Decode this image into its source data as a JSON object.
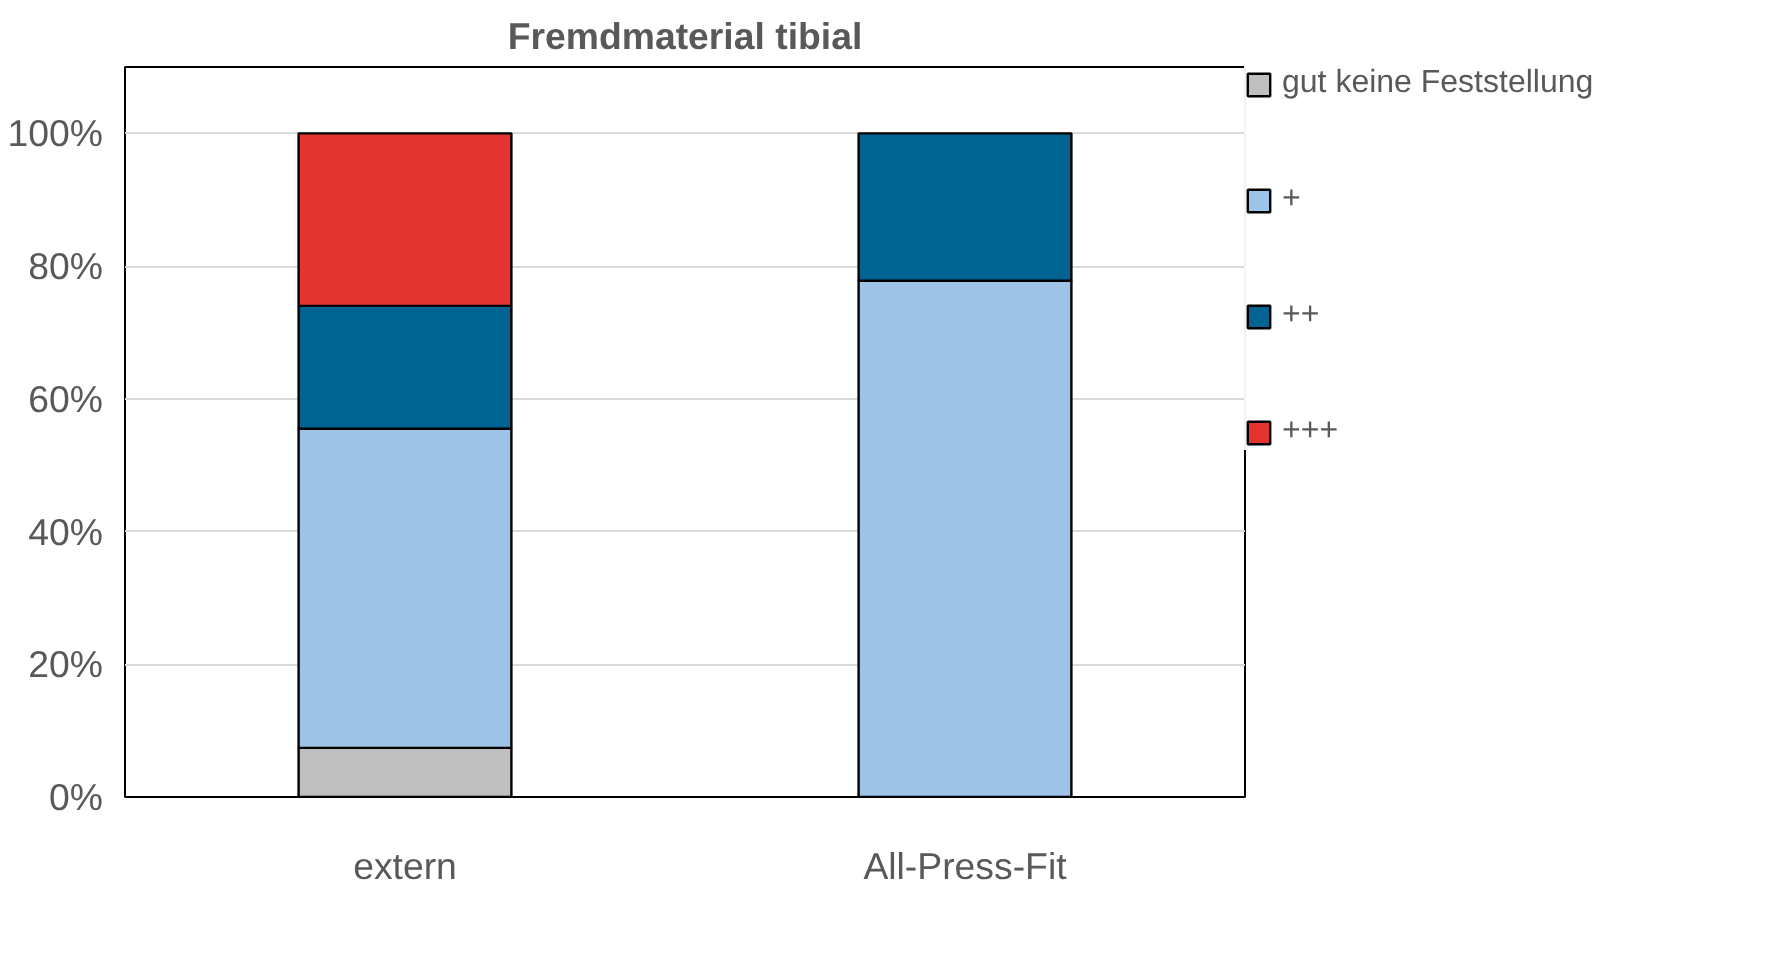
{
  "chart_data": {
    "type": "bar",
    "title": "Fremdmaterial tibial",
    "categories": [
      "extern",
      "All-Press-Fit"
    ],
    "stacked": true,
    "series": [
      {
        "name": "gut keine Feststellung",
        "color": "#bfbfbf",
        "values": [
          7.4,
          null
        ]
      },
      {
        "name": "+",
        "color": "#9dc3e6",
        "values": [
          48.1,
          77.8
        ]
      },
      {
        "name": "++",
        "color": "#006391",
        "values": [
          18.5,
          22.2
        ]
      },
      {
        "name": "+++",
        "color": "#e3342f",
        "values": [
          26.0,
          null
        ]
      }
    ],
    "ylim": [
      0,
      110
    ],
    "yticks": [
      {
        "value": 0,
        "label": "0%"
      },
      {
        "value": 20,
        "label": "20%"
      },
      {
        "value": 40,
        "label": "40%"
      },
      {
        "value": 60,
        "label": "60%"
      },
      {
        "value": 80,
        "label": "80%"
      },
      {
        "value": 100,
        "label": "100%"
      }
    ],
    "grid": "y",
    "legend": "right"
  }
}
